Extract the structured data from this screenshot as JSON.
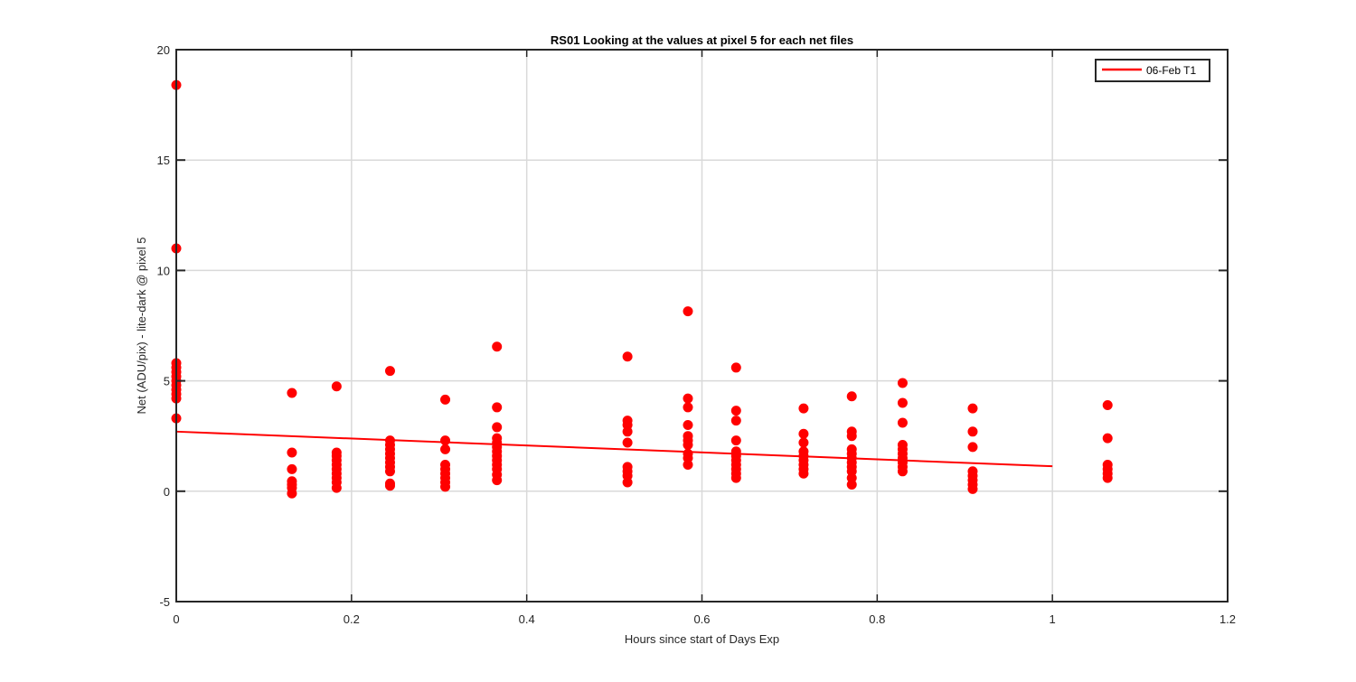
{
  "chart_data": {
    "type": "scatter",
    "title": "RS01  Looking at the values at pixel 5 for each net files",
    "xlabel": "Hours since start of Days Exp",
    "ylabel": "Net (ADU/pix) - lite-dark @ pixel 5",
    "xlim": [
      0,
      1.2
    ],
    "ylim": [
      -5,
      20
    ],
    "xticks": [
      0,
      0.2,
      0.4,
      0.6,
      0.8,
      1,
      1.2
    ],
    "xtick_labels": [
      "0",
      "0.2",
      "0.4",
      "0.6",
      "0.8",
      "1",
      "1.2"
    ],
    "yticks": [
      -5,
      0,
      5,
      10,
      15,
      20
    ],
    "ytick_labels": [
      "-5",
      "0",
      "5",
      "10",
      "15",
      "20"
    ],
    "grid": true,
    "legend": {
      "placement": "top-right",
      "entries": [
        "06-Feb T1"
      ]
    },
    "colors": {
      "series": "#ff0000",
      "grid": "#d9d9d9",
      "axes": "#262626"
    },
    "series": [
      {
        "name": "06-Feb T1",
        "type": "scatter",
        "points": [
          [
            0,
            18.4
          ],
          [
            0,
            11.0
          ],
          [
            0,
            5.8
          ],
          [
            0,
            5.6
          ],
          [
            0,
            5.4
          ],
          [
            0,
            5.2
          ],
          [
            0,
            5.0
          ],
          [
            0,
            4.8
          ],
          [
            0,
            4.6
          ],
          [
            0,
            4.4
          ],
          [
            0,
            4.2
          ],
          [
            0,
            3.3
          ],
          [
            0.132,
            4.45
          ],
          [
            0.132,
            1.75
          ],
          [
            0.132,
            1.0
          ],
          [
            0.132,
            0.45
          ],
          [
            0.132,
            0.3
          ],
          [
            0.132,
            0.15
          ],
          [
            0.132,
            -0.1
          ],
          [
            0.183,
            4.75
          ],
          [
            0.183,
            1.75
          ],
          [
            0.183,
            1.6
          ],
          [
            0.183,
            1.4
          ],
          [
            0.183,
            1.2
          ],
          [
            0.183,
            1.0
          ],
          [
            0.183,
            0.8
          ],
          [
            0.183,
            0.6
          ],
          [
            0.183,
            0.4
          ],
          [
            0.183,
            0.15
          ],
          [
            0.244,
            5.45
          ],
          [
            0.244,
            2.3
          ],
          [
            0.244,
            2.1
          ],
          [
            0.244,
            1.9
          ],
          [
            0.244,
            1.7
          ],
          [
            0.244,
            1.5
          ],
          [
            0.244,
            1.3
          ],
          [
            0.244,
            1.1
          ],
          [
            0.244,
            0.9
          ],
          [
            0.244,
            0.35
          ],
          [
            0.244,
            0.25
          ],
          [
            0.307,
            4.15
          ],
          [
            0.307,
            2.3
          ],
          [
            0.307,
            1.9
          ],
          [
            0.307,
            1.2
          ],
          [
            0.307,
            1.0
          ],
          [
            0.307,
            0.8
          ],
          [
            0.307,
            0.6
          ],
          [
            0.307,
            0.4
          ],
          [
            0.307,
            0.2
          ],
          [
            0.366,
            6.55
          ],
          [
            0.366,
            3.8
          ],
          [
            0.366,
            2.9
          ],
          [
            0.366,
            2.4
          ],
          [
            0.366,
            2.2
          ],
          [
            0.366,
            2.0
          ],
          [
            0.366,
            1.8
          ],
          [
            0.366,
            1.6
          ],
          [
            0.366,
            1.4
          ],
          [
            0.366,
            1.2
          ],
          [
            0.366,
            1.0
          ],
          [
            0.366,
            0.75
          ],
          [
            0.366,
            0.5
          ],
          [
            0.515,
            6.1
          ],
          [
            0.515,
            3.2
          ],
          [
            0.515,
            3.0
          ],
          [
            0.515,
            2.7
          ],
          [
            0.515,
            2.2
          ],
          [
            0.515,
            1.1
          ],
          [
            0.515,
            0.9
          ],
          [
            0.515,
            0.7
          ],
          [
            0.515,
            0.4
          ],
          [
            0.584,
            8.15
          ],
          [
            0.584,
            4.2
          ],
          [
            0.584,
            3.8
          ],
          [
            0.584,
            3.0
          ],
          [
            0.584,
            2.5
          ],
          [
            0.584,
            2.3
          ],
          [
            0.584,
            2.1
          ],
          [
            0.584,
            1.7
          ],
          [
            0.584,
            1.5
          ],
          [
            0.584,
            1.2
          ],
          [
            0.639,
            5.6
          ],
          [
            0.639,
            3.65
          ],
          [
            0.639,
            3.2
          ],
          [
            0.639,
            2.3
          ],
          [
            0.639,
            1.8
          ],
          [
            0.639,
            1.6
          ],
          [
            0.639,
            1.4
          ],
          [
            0.639,
            1.2
          ],
          [
            0.639,
            1.0
          ],
          [
            0.639,
            0.8
          ],
          [
            0.639,
            0.6
          ],
          [
            0.716,
            3.75
          ],
          [
            0.716,
            2.6
          ],
          [
            0.716,
            2.2
          ],
          [
            0.716,
            1.8
          ],
          [
            0.716,
            1.6
          ],
          [
            0.716,
            1.4
          ],
          [
            0.716,
            1.2
          ],
          [
            0.716,
            1.0
          ],
          [
            0.716,
            0.8
          ],
          [
            0.771,
            4.3
          ],
          [
            0.771,
            2.7
          ],
          [
            0.771,
            2.5
          ],
          [
            0.771,
            1.9
          ],
          [
            0.771,
            1.7
          ],
          [
            0.771,
            1.5
          ],
          [
            0.771,
            1.3
          ],
          [
            0.771,
            1.1
          ],
          [
            0.771,
            0.9
          ],
          [
            0.771,
            0.6
          ],
          [
            0.771,
            0.3
          ],
          [
            0.829,
            4.9
          ],
          [
            0.829,
            4.0
          ],
          [
            0.829,
            3.1
          ],
          [
            0.829,
            2.1
          ],
          [
            0.829,
            1.9
          ],
          [
            0.829,
            1.7
          ],
          [
            0.829,
            1.5
          ],
          [
            0.829,
            1.3
          ],
          [
            0.829,
            1.1
          ],
          [
            0.829,
            0.9
          ],
          [
            0.909,
            3.75
          ],
          [
            0.909,
            2.7
          ],
          [
            0.909,
            2.0
          ],
          [
            0.909,
            0.9
          ],
          [
            0.909,
            0.7
          ],
          [
            0.909,
            0.5
          ],
          [
            0.909,
            0.3
          ],
          [
            0.909,
            0.1
          ],
          [
            1.063,
            3.9
          ],
          [
            1.063,
            2.4
          ],
          [
            1.063,
            1.2
          ],
          [
            1.063,
            1.0
          ],
          [
            1.063,
            0.8
          ],
          [
            1.063,
            0.6
          ]
        ]
      },
      {
        "name": "06-Feb T1",
        "type": "line",
        "points": [
          [
            0,
            2.7
          ],
          [
            1.0,
            1.13
          ]
        ]
      }
    ]
  }
}
